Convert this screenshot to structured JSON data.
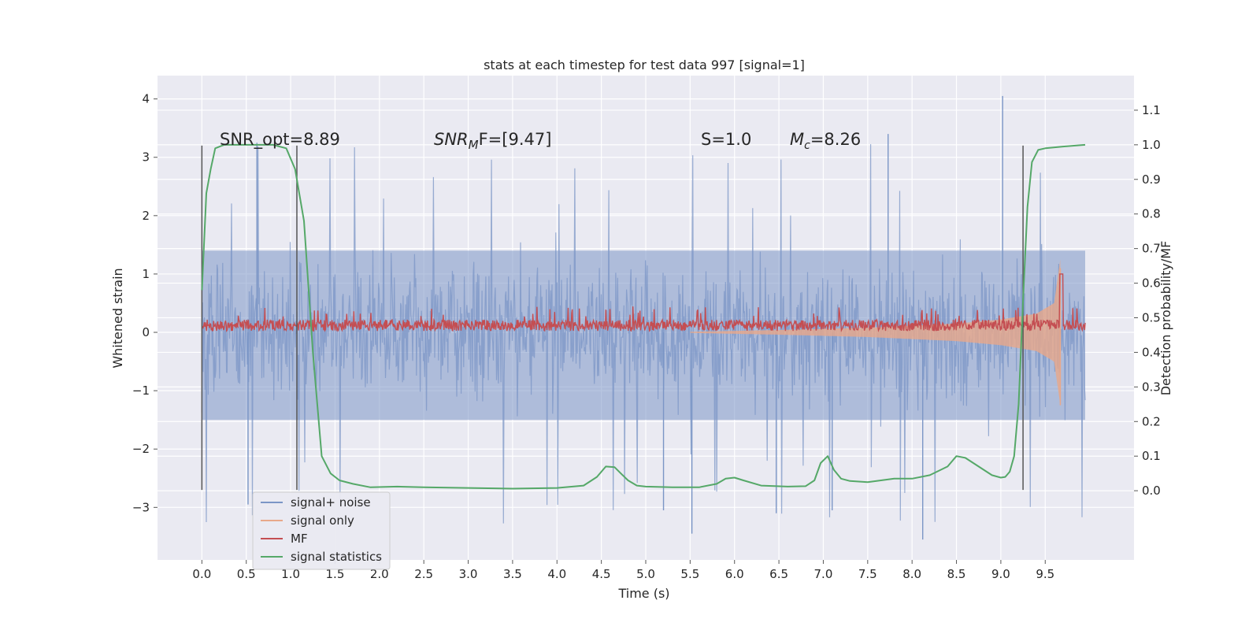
{
  "chart_data": {
    "type": "line",
    "title": "stats at each timestep for test data 997 [signal=1]",
    "xlabel": "Time (s)",
    "ylabel_left": "Whitened strain",
    "ylabel_right": "Detection probability/MF",
    "xlim": [
      -0.5,
      10.5
    ],
    "ylim_left": [
      -3.9,
      4.4
    ],
    "ylim_right": [
      -0.2,
      1.2
    ],
    "x_ticks": [
      "0.0",
      "0.5",
      "1.0",
      "1.5",
      "2.0",
      "2.5",
      "3.0",
      "3.5",
      "4.0",
      "4.5",
      "5.0",
      "5.5",
      "6.0",
      "6.5",
      "7.0",
      "7.5",
      "8.0",
      "8.5",
      "9.0",
      "9.5"
    ],
    "y_ticks_left": [
      "−3",
      "−2",
      "−1",
      "0",
      "1",
      "2",
      "3",
      "4"
    ],
    "y_ticks_right": [
      "0.0",
      "0.1",
      "0.2",
      "0.3",
      "0.4",
      "0.5",
      "0.6",
      "0.7",
      "0.8",
      "0.9",
      "1.0",
      "1.1"
    ],
    "grid": true,
    "legend_position": "bottom-left",
    "annotations": {
      "snr_opt": "SNR_opt=8.89",
      "snr_mf_base": "SNR",
      "snr_mf_sub": "M",
      "snr_mf_rest": "F=[9.47]",
      "s_label": "S=1.0",
      "mc_base": "M",
      "mc_sub": "c",
      "mc_rest": "=8.26"
    },
    "vertical_markers": [
      {
        "x": 0.0,
        "y_top": 3.2,
        "y_bottom": -2.7
      },
      {
        "x": 1.07,
        "y_top": 3.2,
        "y_bottom": -2.7
      },
      {
        "x": 9.25,
        "y_top": 3.2,
        "y_bottom": -2.7
      }
    ],
    "series": [
      {
        "name": "signal+ noise",
        "axis": "left",
        "color": "#7b96c6",
        "kind": "noise",
        "x_range": [
          0.0,
          9.95
        ],
        "envelope_upper": 1.4,
        "envelope_lower": -1.5,
        "max": 4.05,
        "min": -3.55
      },
      {
        "name": "signal only",
        "axis": "left",
        "color": "#e8a88a",
        "kind": "chirp",
        "x_range": [
          5.5,
          9.67
        ],
        "envelope": [
          [
            5.5,
            0.01
          ],
          [
            6.5,
            0.04
          ],
          [
            7.5,
            0.08
          ],
          [
            8.5,
            0.15
          ],
          [
            9.0,
            0.22
          ],
          [
            9.4,
            0.32
          ],
          [
            9.6,
            0.5
          ],
          [
            9.67,
            1.25
          ]
        ]
      },
      {
        "name": "MF",
        "axis": "left",
        "color": "#c44e52",
        "kind": "mf",
        "x_range": [
          0.0,
          9.95
        ],
        "baseline": 0.12,
        "spread": 0.12,
        "peak": {
          "x": 9.68,
          "y": 1.0
        }
      },
      {
        "name": "signal statistics",
        "axis": "right",
        "color": "#55a868",
        "kind": "line",
        "x": [
          0.0,
          0.05,
          0.1,
          0.15,
          0.25,
          0.5,
          0.8,
          0.95,
          1.05,
          1.15,
          1.25,
          1.35,
          1.45,
          1.55,
          1.7,
          1.9,
          2.2,
          2.5,
          3.0,
          3.5,
          4.0,
          4.3,
          4.45,
          4.55,
          4.65,
          4.72,
          4.8,
          4.9,
          5.0,
          5.3,
          5.6,
          5.8,
          5.9,
          6.0,
          6.1,
          6.3,
          6.6,
          6.8,
          6.9,
          6.97,
          7.05,
          7.12,
          7.2,
          7.3,
          7.5,
          7.8,
          8.0,
          8.2,
          8.4,
          8.5,
          8.6,
          8.75,
          8.9,
          9.0,
          9.05,
          9.1,
          9.15,
          9.2,
          9.25,
          9.3,
          9.35,
          9.42,
          9.5,
          9.7,
          9.95
        ],
        "y": [
          0.58,
          0.86,
          0.93,
          0.99,
          1.0,
          1.0,
          1.0,
          0.99,
          0.93,
          0.78,
          0.4,
          0.1,
          0.05,
          0.03,
          0.02,
          0.01,
          0.012,
          0.01,
          0.008,
          0.006,
          0.008,
          0.015,
          0.04,
          0.07,
          0.068,
          0.05,
          0.03,
          0.015,
          0.012,
          0.01,
          0.01,
          0.02,
          0.035,
          0.038,
          0.03,
          0.015,
          0.012,
          0.013,
          0.03,
          0.08,
          0.1,
          0.06,
          0.035,
          0.028,
          0.025,
          0.035,
          0.035,
          0.045,
          0.07,
          0.1,
          0.095,
          0.07,
          0.045,
          0.038,
          0.04,
          0.055,
          0.1,
          0.25,
          0.55,
          0.82,
          0.95,
          0.985,
          0.99,
          0.995,
          1.0
        ]
      }
    ]
  }
}
